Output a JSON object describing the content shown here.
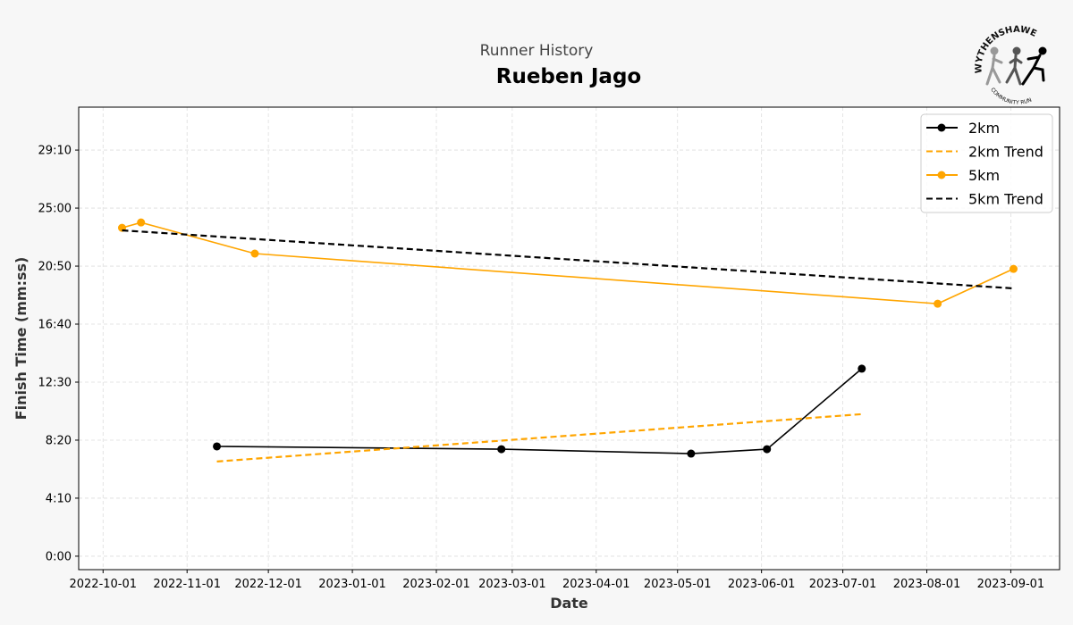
{
  "header": {
    "suptitle": "Runner History",
    "title": "Rueben Jago"
  },
  "logo": {
    "text_top": "WYTHENSHAWE",
    "text_bottom": "COMMUNITY RUN",
    "icon": "runners-logo"
  },
  "chart_data": {
    "type": "line",
    "xlabel": "Date",
    "ylabel": "Finish Time (mm:ss)",
    "xlim": [
      "2022-09-22",
      "2023-09-19"
    ],
    "ylim_seconds": [
      -58,
      1935
    ],
    "grid": true,
    "grid_style": "dashed",
    "legend_placement": "top-right",
    "x_ticks": [
      "2022-10-01",
      "2022-11-01",
      "2022-12-01",
      "2023-01-01",
      "2023-02-01",
      "2023-03-01",
      "2023-04-01",
      "2023-05-01",
      "2023-06-01",
      "2023-07-01",
      "2023-08-01",
      "2023-09-01"
    ],
    "y_ticks": [
      {
        "seconds": 0,
        "label": "0:00"
      },
      {
        "seconds": 250,
        "label": "4:10"
      },
      {
        "seconds": 500,
        "label": "8:20"
      },
      {
        "seconds": 750,
        "label": "12:30"
      },
      {
        "seconds": 1000,
        "label": "16:40"
      },
      {
        "seconds": 1250,
        "label": "20:50"
      },
      {
        "seconds": 1500,
        "label": "25:00"
      },
      {
        "seconds": 1750,
        "label": "29:10"
      }
    ],
    "series": [
      {
        "name": "2km",
        "color": "#000000",
        "style": "solid",
        "marker": true,
        "points": [
          [
            "2022-11-12",
            473
          ],
          [
            "2023-02-25",
            461
          ],
          [
            "2023-05-06",
            442
          ],
          [
            "2023-06-03",
            461
          ],
          [
            "2023-07-08",
            808
          ]
        ]
      },
      {
        "name": "2km Trend",
        "color": "#FFA500",
        "style": "dashed",
        "marker": false,
        "points": [
          [
            "2022-11-12",
            408
          ],
          [
            "2023-07-08",
            612
          ]
        ]
      },
      {
        "name": "5km",
        "color": "#FFA500",
        "style": "solid",
        "marker": true,
        "points": [
          [
            "2022-10-08",
            1415
          ],
          [
            "2022-10-15",
            1438
          ],
          [
            "2022-11-26",
            1304
          ],
          [
            "2023-08-05",
            1088
          ],
          [
            "2023-09-02",
            1238
          ]
        ]
      },
      {
        "name": "5km Trend",
        "color": "#000000",
        "style": "dashed",
        "marker": false,
        "points": [
          [
            "2022-10-08",
            1404
          ],
          [
            "2023-09-02",
            1154
          ]
        ]
      }
    ]
  }
}
